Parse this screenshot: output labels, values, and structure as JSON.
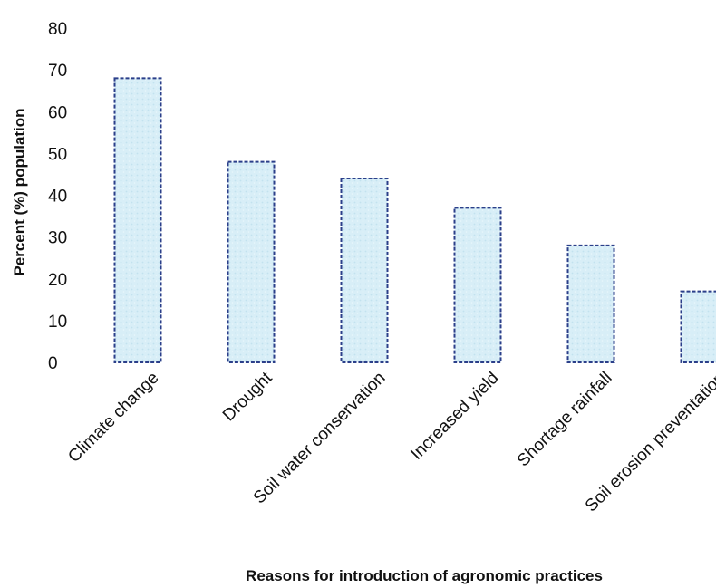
{
  "chart_data": {
    "type": "bar",
    "title": "",
    "xlabel": "Reasons  for introduction of agronomic practices",
    "ylabel": "Percent (%) population",
    "categories": [
      "Climate change",
      "Drought",
      "Soil water conservation",
      "Increased yield",
      "Shortage rainfall",
      "Soil erosion preventation"
    ],
    "values": [
      68,
      48,
      44,
      37,
      28,
      17
    ],
    "ylim": [
      0,
      80
    ],
    "yticks": [
      0,
      10,
      20,
      30,
      40,
      50,
      60,
      70,
      80
    ],
    "grid": false,
    "legend": "none",
    "colors": {
      "bar_fill": "#d8eef7",
      "bar_stroke": "#2b3f8a",
      "text": "#111111"
    }
  }
}
